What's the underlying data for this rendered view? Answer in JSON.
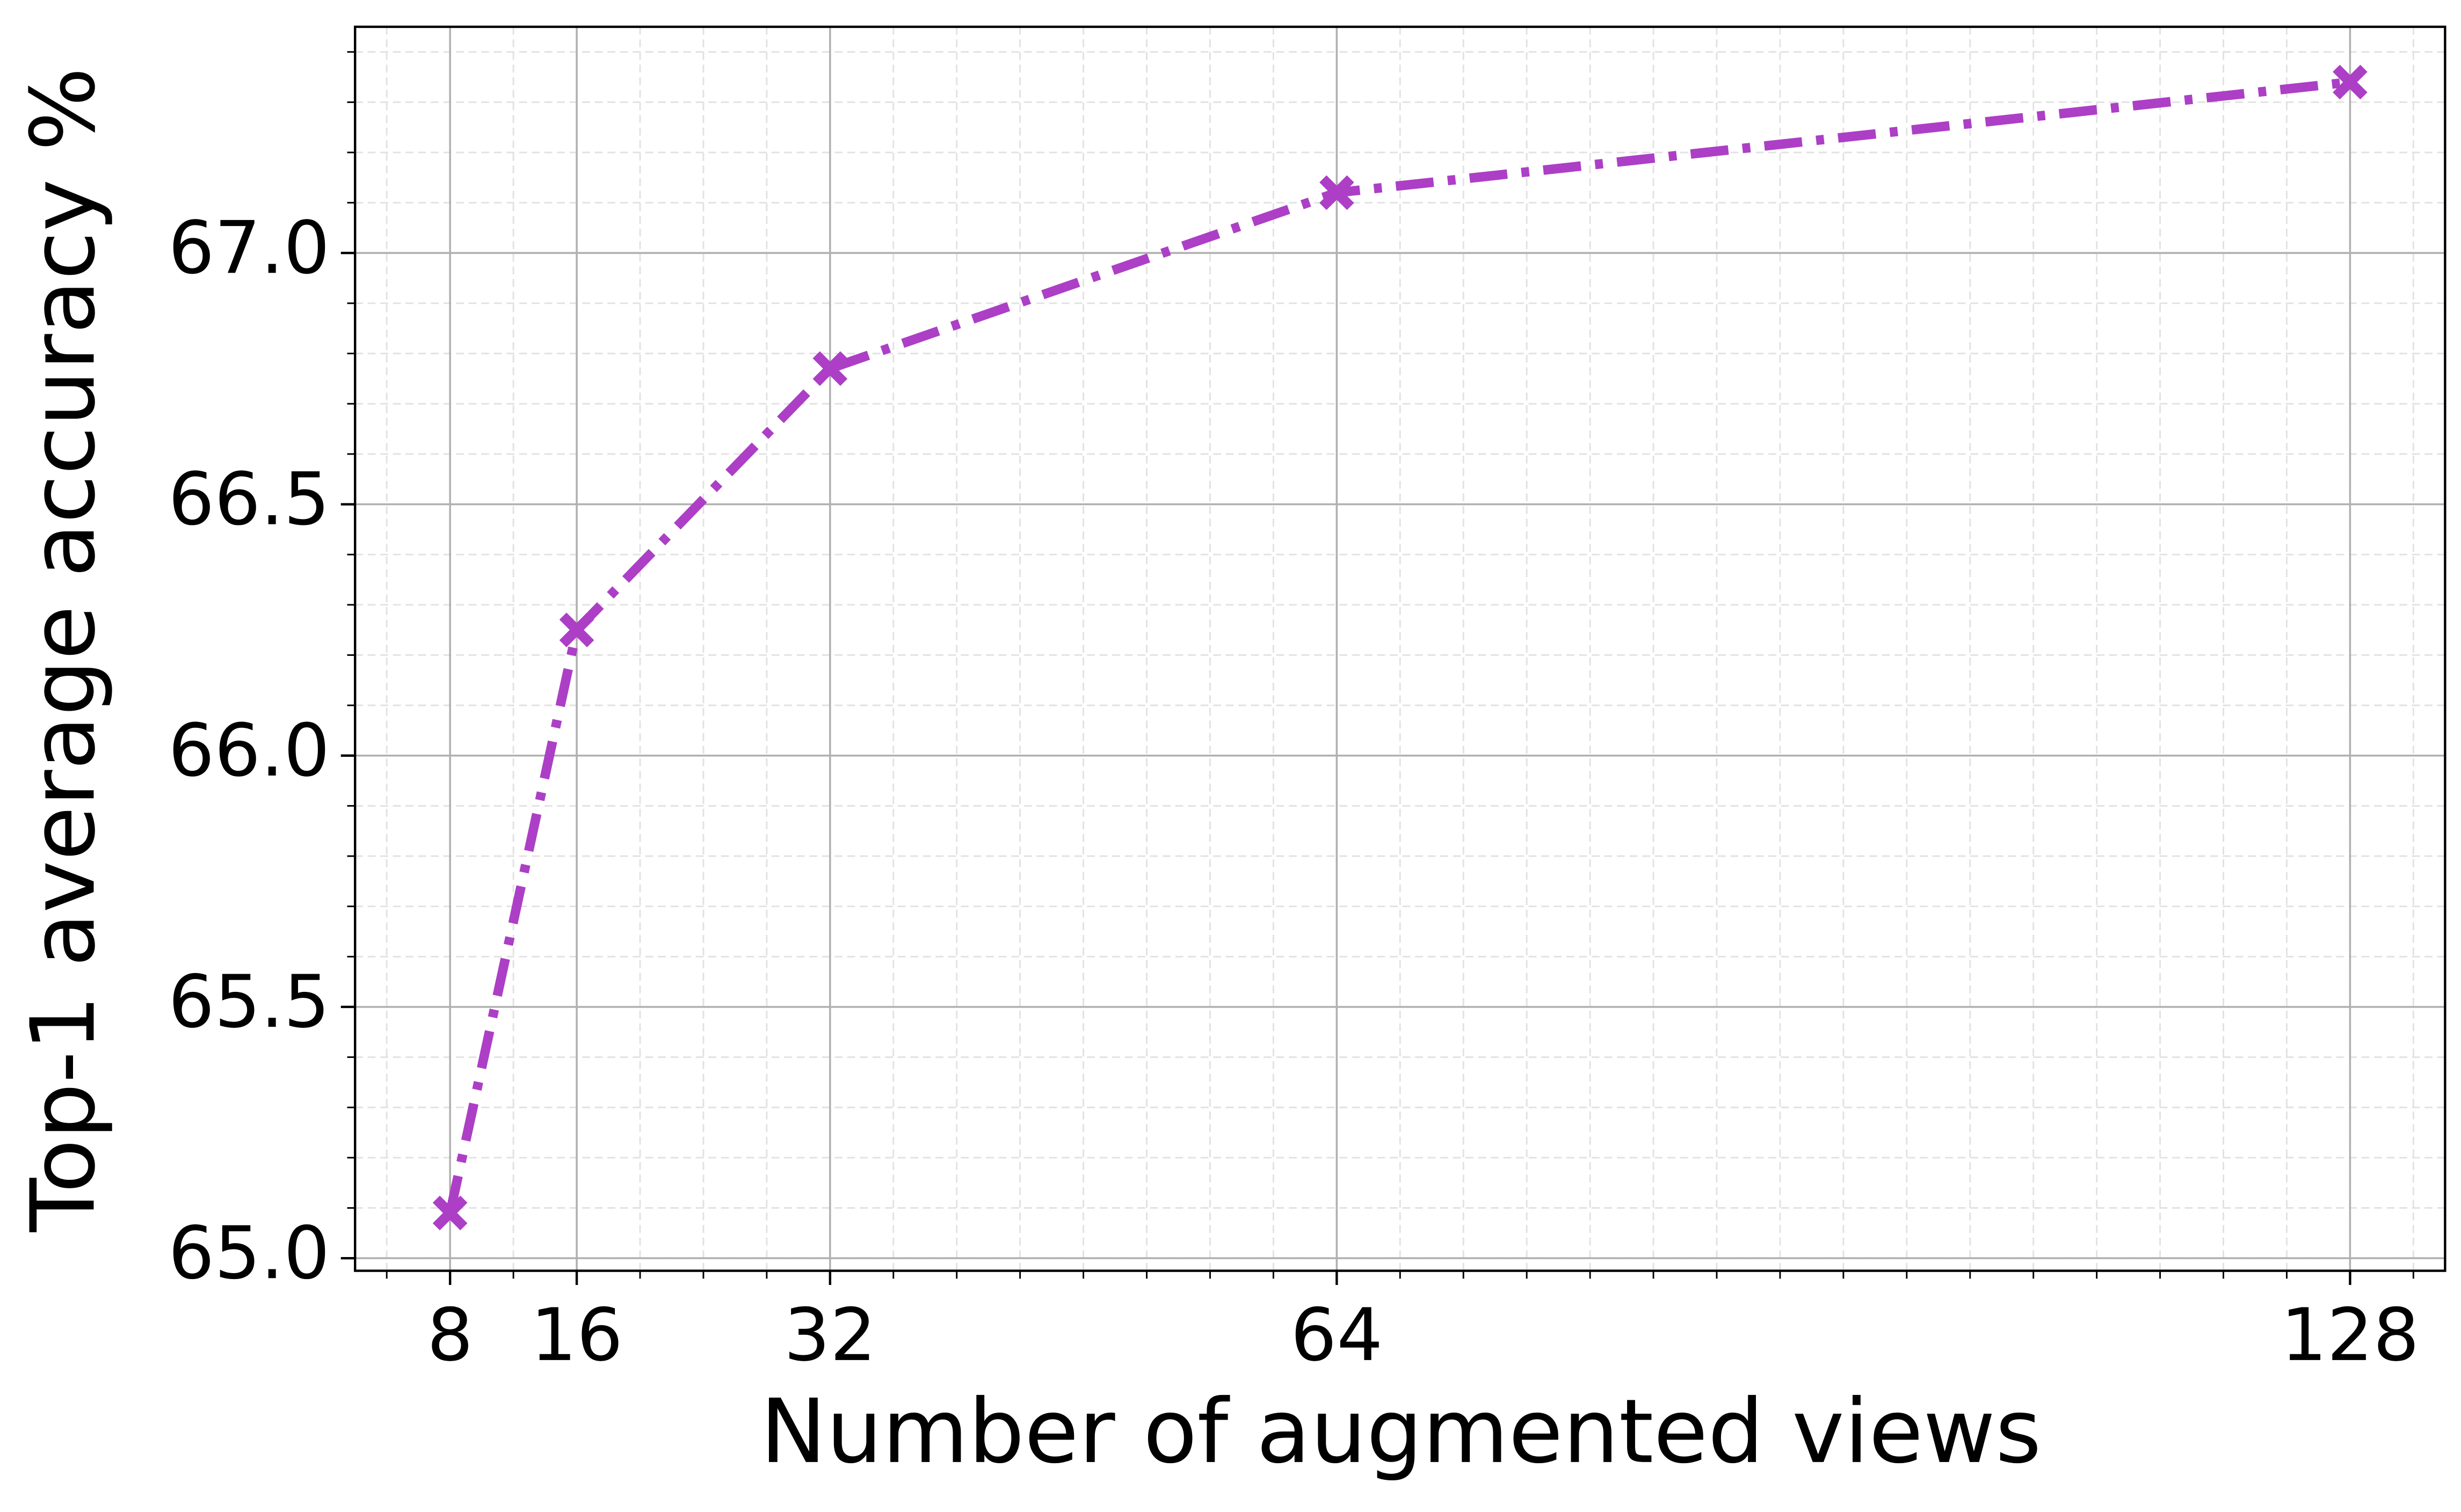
{
  "chart_data": {
    "type": "line",
    "xlabel": "Number of augmented views",
    "ylabel": "Top-1 average accuracy %",
    "x": [
      8,
      16,
      32,
      64,
      128
    ],
    "series": [
      {
        "color": "#ac3fc6",
        "values": [
          65.09,
          66.25,
          66.77,
          67.12,
          67.34
        ]
      }
    ],
    "xlim": [
      2,
      134
    ],
    "ylim": [
      64.975,
      67.45
    ],
    "xticks": [
      8,
      16,
      32,
      64,
      128
    ],
    "yticks": [
      {
        "value": 65,
        "label": "65.0"
      },
      {
        "value": 65.5,
        "label": "65.5"
      },
      {
        "value": 66,
        "label": "66.0"
      },
      {
        "value": 66.5,
        "label": "66.5"
      },
      {
        "value": 67,
        "label": "67.0"
      }
    ],
    "grid": true,
    "minor_grid": true,
    "xminor_step": 4,
    "yminor_step": 0.1
  }
}
